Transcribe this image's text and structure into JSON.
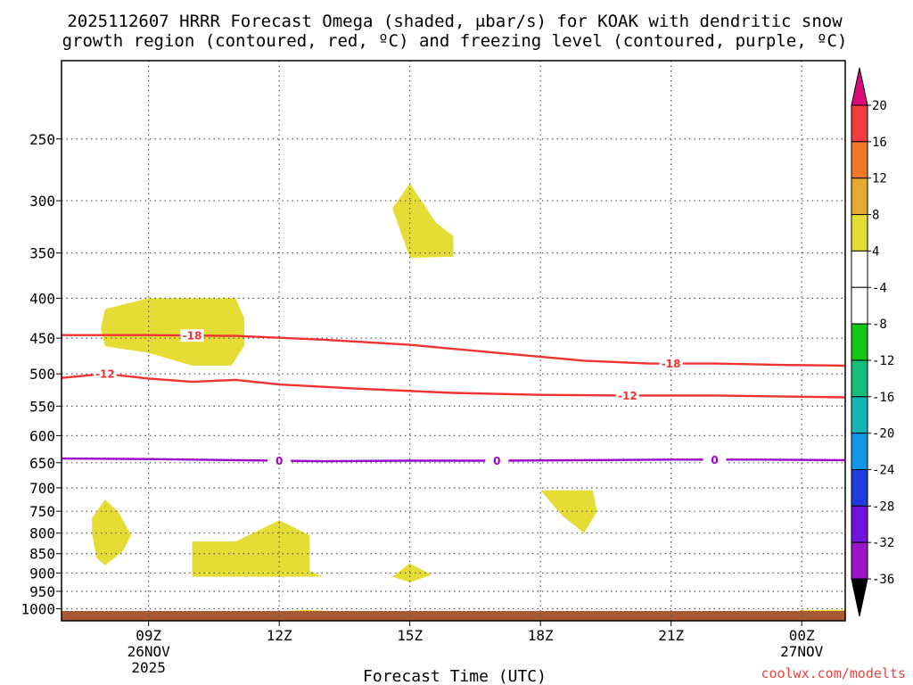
{
  "title_line1": "2025112607 HRRR Forecast Omega (shaded, μbar/s) for KOAK with dendritic snow",
  "title_line2": "growth region (contoured, red, ºC) and freezing level (contoured, purple, ºC)",
  "credit": "coolwx.com/modelts",
  "chart_data": {
    "type": "time-height cross section",
    "xlabel": "Forecast Time (UTC)",
    "x_range_hours": [
      7,
      25
    ],
    "y_range_hPa": [
      1020,
      200
    ],
    "y_scale": "log-pressure",
    "grid": true,
    "x_ticks": [
      {
        "hour": 9,
        "label": "09Z",
        "sub1": "26NOV",
        "sub2": "2025"
      },
      {
        "hour": 12,
        "label": "12Z",
        "sub1": "",
        "sub2": ""
      },
      {
        "hour": 15,
        "label": "15Z",
        "sub1": "",
        "sub2": ""
      },
      {
        "hour": 18,
        "label": "18Z",
        "sub1": "",
        "sub2": ""
      },
      {
        "hour": 21,
        "label": "21Z",
        "sub1": "",
        "sub2": ""
      },
      {
        "hour": 24,
        "label": "00Z",
        "sub1": "27NOV",
        "sub2": ""
      }
    ],
    "y_ticks": [
      250,
      300,
      350,
      400,
      450,
      500,
      550,
      600,
      650,
      700,
      750,
      800,
      850,
      900,
      950,
      1000
    ],
    "contours": [
      {
        "name": "-18",
        "color": "#ee3333",
        "label_hours": [
          10,
          21
        ],
        "points": [
          [
            7,
            446
          ],
          [
            9,
            446
          ],
          [
            11,
            447
          ],
          [
            13,
            452
          ],
          [
            15,
            459
          ],
          [
            17,
            470
          ],
          [
            19,
            481
          ],
          [
            20.5,
            485
          ],
          [
            22,
            485
          ],
          [
            23.5,
            487
          ],
          [
            25,
            488
          ]
        ]
      },
      {
        "name": "-12",
        "color": "#ee3333",
        "label_hours": [
          8,
          20
        ],
        "points": [
          [
            7,
            506
          ],
          [
            8,
            500
          ],
          [
            9,
            507
          ],
          [
            10,
            512
          ],
          [
            11,
            509
          ],
          [
            12,
            516
          ],
          [
            14,
            523
          ],
          [
            16,
            529
          ],
          [
            18,
            532
          ],
          [
            20,
            533
          ],
          [
            22,
            533
          ],
          [
            24,
            535
          ],
          [
            25,
            536
          ]
        ]
      },
      {
        "name": "0",
        "color": "#9900cc",
        "label_hours": [
          12,
          17,
          22
        ],
        "points": [
          [
            7,
            642
          ],
          [
            9,
            643
          ],
          [
            11,
            645
          ],
          [
            13,
            647
          ],
          [
            15,
            646
          ],
          [
            17,
            646
          ],
          [
            19,
            645
          ],
          [
            21,
            644
          ],
          [
            23,
            644
          ],
          [
            25,
            645
          ]
        ]
      }
    ],
    "shaded_regions": [
      {
        "color": "#e5dd35",
        "points": [
          [
            8,
            413
          ],
          [
            9,
            400
          ],
          [
            11,
            400
          ],
          [
            11.2,
            425
          ],
          [
            11.2,
            460
          ],
          [
            10.9,
            488
          ],
          [
            10,
            488
          ],
          [
            9,
            470
          ],
          [
            8,
            461
          ],
          [
            7.9,
            437
          ]
        ]
      },
      {
        "color": "#e5dd35",
        "points": [
          [
            15,
            285
          ],
          [
            15.6,
            320
          ],
          [
            16,
            333
          ],
          [
            16,
            354
          ],
          [
            15,
            355
          ],
          [
            14.8,
            330
          ],
          [
            14.6,
            307
          ]
        ]
      },
      {
        "color": "#e5dd35",
        "points": [
          [
            8,
            725
          ],
          [
            8.3,
            750
          ],
          [
            8.6,
            805
          ],
          [
            8.4,
            845
          ],
          [
            8,
            880
          ],
          [
            7.8,
            860
          ],
          [
            7.7,
            800
          ],
          [
            7.7,
            765
          ]
        ]
      },
      {
        "color": "#e5dd35",
        "points": [
          [
            10,
            820
          ],
          [
            11,
            820
          ],
          [
            12,
            770
          ],
          [
            12.7,
            805
          ],
          [
            12.7,
            895
          ],
          [
            13,
            910
          ],
          [
            10,
            910
          ]
        ]
      },
      {
        "color": "#e5dd35",
        "points": [
          [
            15,
            875
          ],
          [
            15.5,
            905
          ],
          [
            15,
            925
          ],
          [
            14.6,
            910
          ]
        ]
      },
      {
        "color": "#e5dd35",
        "points": [
          [
            18,
            705
          ],
          [
            19.2,
            705
          ],
          [
            19.3,
            750
          ],
          [
            19,
            800
          ],
          [
            18.5,
            760
          ]
        ]
      },
      {
        "color": "#e5dd35",
        "points": [
          [
            12,
            1008
          ],
          [
            12.6,
            1003
          ],
          [
            13.6,
            1010
          ],
          [
            12,
            1011
          ]
        ]
      },
      {
        "color": "#e5dd35",
        "points": [
          [
            15,
            1010
          ],
          [
            16.7,
            1009
          ],
          [
            16.7,
            1011
          ],
          [
            15,
            1011
          ]
        ]
      },
      {
        "color": "#e5dd35",
        "points": [
          [
            24,
            1004
          ],
          [
            25,
            1003
          ],
          [
            25,
            1012
          ],
          [
            24,
            1012
          ]
        ]
      }
    ],
    "ground_color": "#a85a32",
    "colorbar": {
      "labels": [
        "20",
        "16",
        "12",
        "8",
        "4",
        "-4",
        "-8",
        "-12",
        "-16",
        "-20",
        "-24",
        "-28",
        "-32",
        "-36"
      ],
      "colors": [
        "#dc0a78",
        "#f03c3c",
        "#f07828",
        "#e6aa32",
        "#e5dd35",
        "#ffffff",
        "#ffffff",
        "#14c814",
        "#14be78",
        "#14b4b4",
        "#1496e6",
        "#1e3cdc",
        "#6e14dc",
        "#9a14c8",
        "#a0a0a0",
        "#000000"
      ]
    }
  }
}
